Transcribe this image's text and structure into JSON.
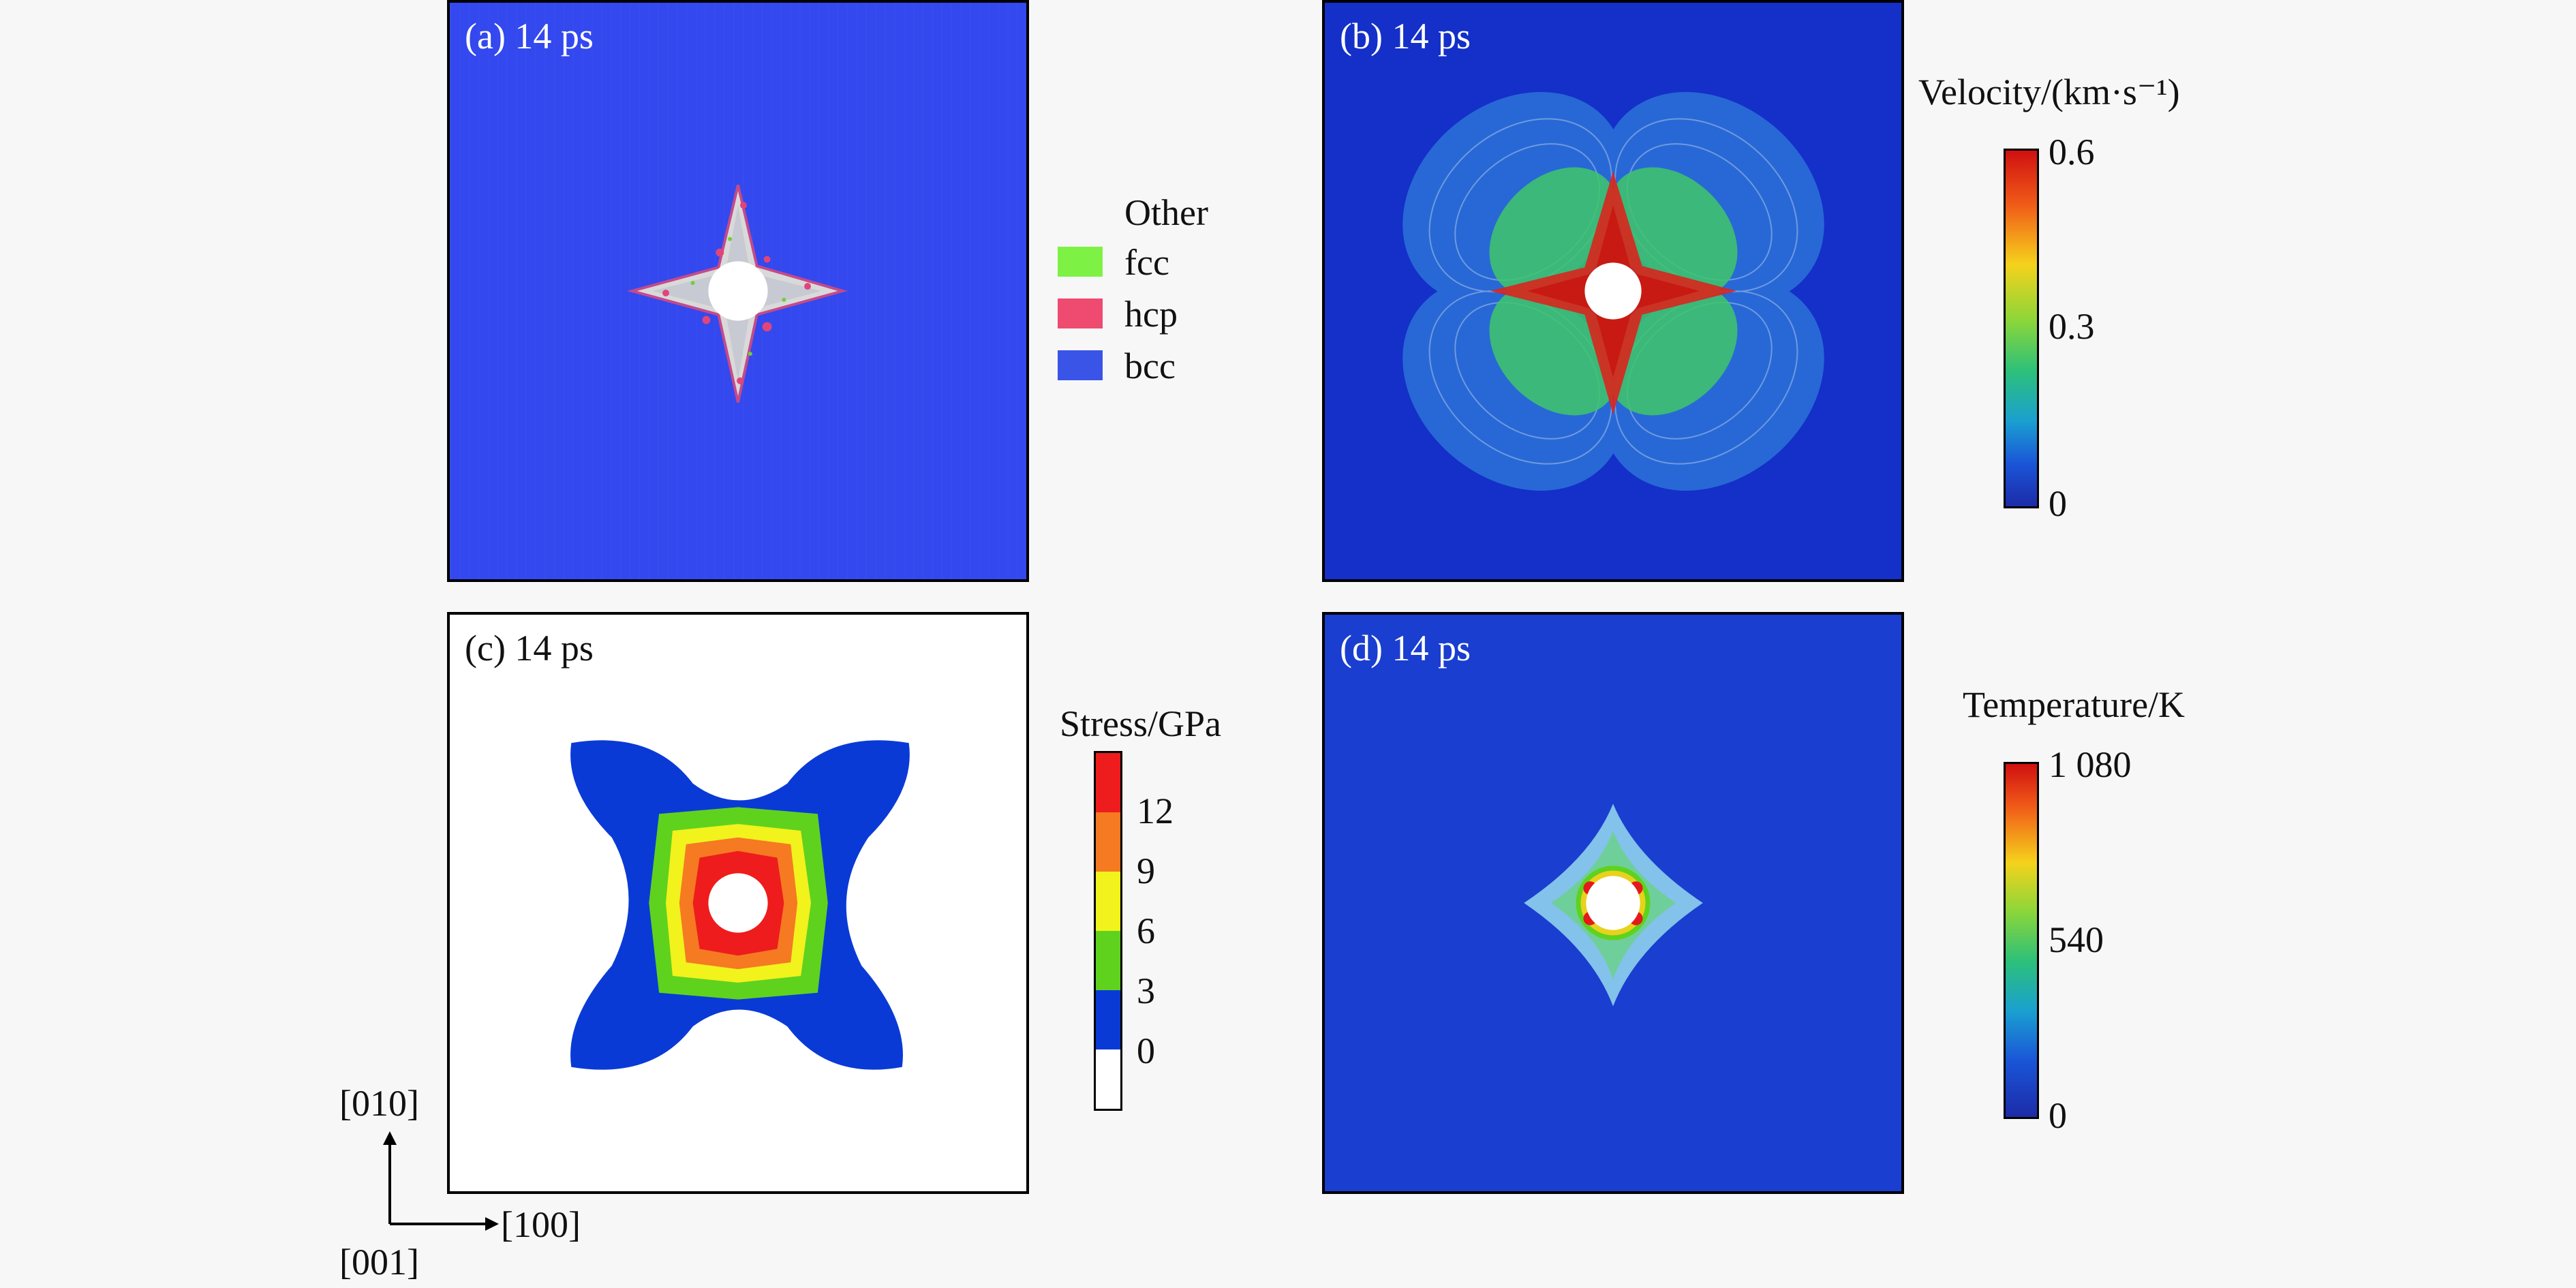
{
  "panels": {
    "a": {
      "label": "(a) 14 ps"
    },
    "b": {
      "label": "(b) 14 ps"
    },
    "c": {
      "label": "(c) 14 ps"
    },
    "d": {
      "label": "(d) 14 ps"
    }
  },
  "structure_legend": {
    "items": [
      {
        "label": "Other",
        "color": "#ffffff"
      },
      {
        "label": "fcc",
        "color": "#7df244"
      },
      {
        "label": "hcp",
        "color": "#ef4a70"
      },
      {
        "label": "bcc",
        "color": "#3a54e8"
      }
    ]
  },
  "velocity_bar": {
    "title": "Velocity/(km·s⁻¹)",
    "ticks": [
      "0.6",
      "0.3",
      "0"
    ]
  },
  "stress_bar": {
    "title": "Stress/GPa",
    "ticks": [
      "12",
      "9",
      "6",
      "3",
      "0"
    ],
    "colors": [
      "#ee1c1c",
      "#f57a22",
      "#f2f21c",
      "#5fd21e",
      "#0a3ad6",
      "#ffffff"
    ]
  },
  "temperature_bar": {
    "title": "Temperature/K",
    "ticks": [
      "1 080",
      "540",
      "0"
    ]
  },
  "axes": {
    "y_label": "[010]",
    "x_label": "[100]",
    "z_label": "[001]"
  }
}
